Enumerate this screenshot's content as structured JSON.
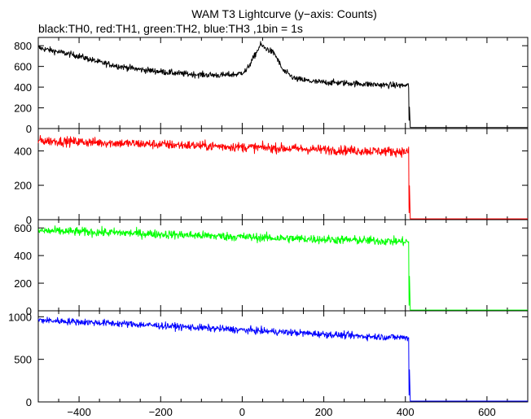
{
  "figure": {
    "title": "WAM T3 Lightcurve (y−axis: Counts)",
    "subtitle": "black:TH0, red:TH1, green:TH2, blue:TH3 ,1bin = 1s"
  },
  "chart_data": [
    {
      "type": "line",
      "series_key": "TH0",
      "color": "#000000",
      "xlim": [
        -500,
        700
      ],
      "ylim": [
        0,
        880
      ],
      "yticks": [
        0,
        200,
        400,
        600,
        800
      ],
      "ytick_labels": [
        "0",
        "200",
        "400",
        "600",
        "800"
      ],
      "bin_seconds": 1,
      "noise": 28,
      "points": [
        [
          -500,
          780
        ],
        [
          -450,
          740
        ],
        [
          -400,
          700
        ],
        [
          -350,
          640
        ],
        [
          -300,
          600
        ],
        [
          -250,
          570
        ],
        [
          -200,
          550
        ],
        [
          -150,
          530
        ],
        [
          -100,
          520
        ],
        [
          -50,
          515
        ],
        [
          -10,
          525
        ],
        [
          10,
          560
        ],
        [
          30,
          700
        ],
        [
          45,
          810
        ],
        [
          55,
          780
        ],
        [
          65,
          760
        ],
        [
          80,
          720
        ],
        [
          100,
          560
        ],
        [
          130,
          480
        ],
        [
          180,
          450
        ],
        [
          250,
          440
        ],
        [
          350,
          420
        ],
        [
          408,
          415
        ]
      ],
      "post_drop_value": 10
    },
    {
      "type": "line",
      "series_key": "TH1",
      "color": "#ff0000",
      "xlim": [
        -500,
        700
      ],
      "ylim": [
        0,
        530
      ],
      "yticks": [
        0,
        200,
        400
      ],
      "ytick_labels": [
        "0",
        "200",
        "400"
      ],
      "bin_seconds": 1,
      "noise": 26,
      "points": [
        [
          -500,
          460
        ],
        [
          -300,
          445
        ],
        [
          -100,
          430
        ],
        [
          100,
          415
        ],
        [
          300,
          400
        ],
        [
          408,
          395
        ]
      ],
      "post_drop_value": 5
    },
    {
      "type": "line",
      "series_key": "TH2",
      "color": "#00ff00",
      "xlim": [
        -500,
        700
      ],
      "ylim": [
        0,
        660
      ],
      "yticks": [
        0,
        200,
        400,
        600
      ],
      "ytick_labels": [
        "0",
        "200",
        "400",
        "600"
      ],
      "bin_seconds": 1,
      "noise": 30,
      "points": [
        [
          -500,
          580
        ],
        [
          -300,
          565
        ],
        [
          -100,
          545
        ],
        [
          100,
          525
        ],
        [
          300,
          510
        ],
        [
          408,
          500
        ]
      ],
      "post_drop_value": 5
    },
    {
      "type": "line",
      "series_key": "TH3",
      "color": "#0000ff",
      "xlim": [
        -500,
        700
      ],
      "ylim": [
        0,
        1070
      ],
      "yticks": [
        0,
        500,
        1000
      ],
      "ytick_labels": [
        "0",
        "500",
        "1000"
      ],
      "bin_seconds": 1,
      "noise": 38,
      "points": [
        [
          -500,
          960
        ],
        [
          -300,
          920
        ],
        [
          -100,
          870
        ],
        [
          100,
          820
        ],
        [
          300,
          770
        ],
        [
          408,
          755
        ]
      ],
      "post_drop_value": 10
    }
  ],
  "x_axis": {
    "ticks": [
      -400,
      -200,
      0,
      200,
      400,
      600
    ],
    "tick_labels": [
      "−400",
      "−200",
      "0",
      "200",
      "400",
      "600"
    ],
    "minor_step": 50
  }
}
